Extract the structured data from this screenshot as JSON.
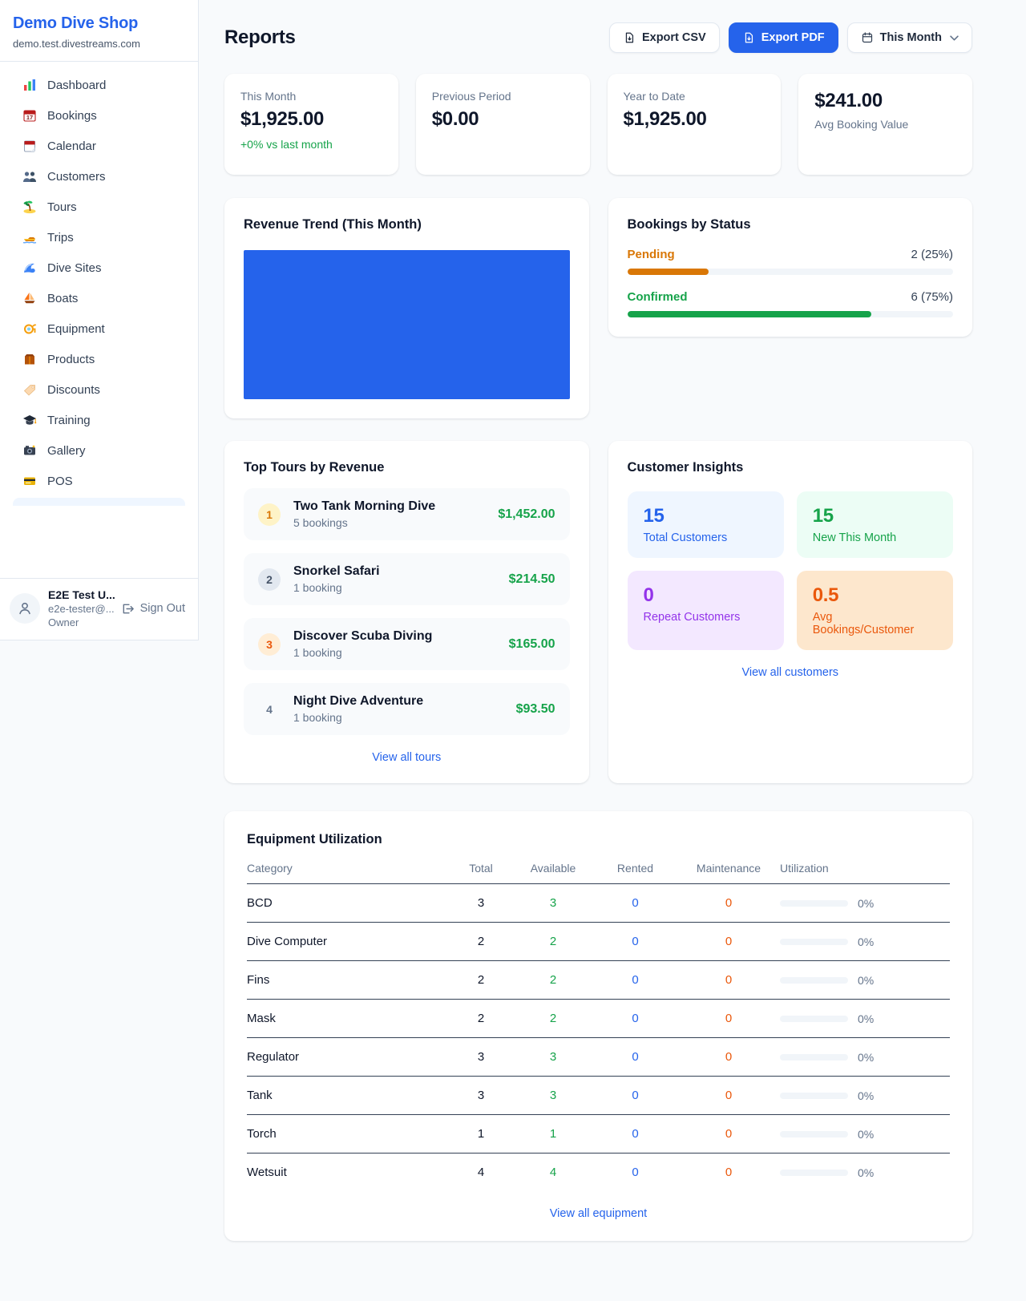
{
  "colors": {
    "accent": "#2563eb",
    "success": "#16a34a",
    "pending": "#d97706",
    "maintenance": "#ea580c",
    "purple": "#9333ea",
    "chart_bar": "#2563eb"
  },
  "sidebar": {
    "brand": {
      "name": "Demo Dive Shop",
      "domain": "demo.test.divestreams.com"
    },
    "nav": [
      {
        "icon": "dashboard-icon",
        "label": "Dashboard"
      },
      {
        "icon": "bookings-calendar-icon",
        "label": "Bookings"
      },
      {
        "icon": "calendar-icon",
        "label": "Calendar"
      },
      {
        "icon": "customers-icon",
        "label": "Customers"
      },
      {
        "icon": "tours-island-icon",
        "label": "Tours"
      },
      {
        "icon": "trips-boat-icon",
        "label": "Trips"
      },
      {
        "icon": "dive-sites-wave-icon",
        "label": "Dive Sites"
      },
      {
        "icon": "boats-sailboat-icon",
        "label": "Boats"
      },
      {
        "icon": "equipment-mask-icon",
        "label": "Equipment"
      },
      {
        "icon": "products-box-icon",
        "label": "Products"
      },
      {
        "icon": "discounts-tag-icon",
        "label": "Discounts"
      },
      {
        "icon": "training-cap-icon",
        "label": "Training"
      },
      {
        "icon": "gallery-camera-icon",
        "label": "Gallery"
      },
      {
        "icon": "pos-card-icon",
        "label": "POS"
      }
    ],
    "user": {
      "name": "E2E Test U...",
      "email": "e2e-tester@...",
      "role": "Owner",
      "sign_out": "Sign Out"
    }
  },
  "header": {
    "title": "Reports",
    "export_csv": "Export CSV",
    "export_pdf": "Export PDF",
    "period": "This Month"
  },
  "stats": [
    {
      "label": "This Month",
      "value": "$1,925.00",
      "sub": "+0% vs last month"
    },
    {
      "label": "Previous Period",
      "value": "$0.00"
    },
    {
      "label": "Year to Date",
      "value": "$1,925.00"
    },
    {
      "label": "Avg Booking Value",
      "value": "$241.00"
    }
  ],
  "revenue_trend": {
    "title": "Revenue Trend (This Month)",
    "fill_pct": 100
  },
  "bookings_by_status": {
    "title": "Bookings by Status",
    "rows": [
      {
        "label": "Pending",
        "value": "2 (25%)",
        "count": 2,
        "pct": 25
      },
      {
        "label": "Confirmed",
        "value": "6 (75%)",
        "count": 6,
        "pct": 75
      }
    ]
  },
  "top_tours": {
    "title": "Top Tours by Revenue",
    "items": [
      {
        "rank": "1",
        "name": "Two Tank Morning Dive",
        "bookings": "5 bookings",
        "revenue": "$1,452.00"
      },
      {
        "rank": "2",
        "name": "Snorkel Safari",
        "bookings": "1 booking",
        "revenue": "$214.50"
      },
      {
        "rank": "3",
        "name": "Discover Scuba Diving",
        "bookings": "1 booking",
        "revenue": "$165.00"
      },
      {
        "rank": "4",
        "name": "Night Dive Adventure",
        "bookings": "1 booking",
        "revenue": "$93.50"
      }
    ],
    "view_all": "View all tours"
  },
  "customer_insights": {
    "title": "Customer Insights",
    "tiles": [
      {
        "value": "15",
        "label": "Total Customers"
      },
      {
        "value": "15",
        "label": "New This Month"
      },
      {
        "value": "0",
        "label": "Repeat Customers"
      },
      {
        "value": "0.5",
        "label": "Avg Bookings/Customer"
      }
    ],
    "view_all": "View all customers"
  },
  "equipment": {
    "title": "Equipment Utilization",
    "columns": [
      "Category",
      "Total",
      "Available",
      "Rented",
      "Maintenance",
      "Utilization"
    ],
    "rows": [
      {
        "category": "BCD",
        "total": "3",
        "available": "3",
        "rented": "0",
        "maintenance": "0",
        "utilization": "0%",
        "pct": 0
      },
      {
        "category": "Dive Computer",
        "total": "2",
        "available": "2",
        "rented": "0",
        "maintenance": "0",
        "utilization": "0%",
        "pct": 0
      },
      {
        "category": "Fins",
        "total": "2",
        "available": "2",
        "rented": "0",
        "maintenance": "0",
        "utilization": "0%",
        "pct": 0
      },
      {
        "category": "Mask",
        "total": "2",
        "available": "2",
        "rented": "0",
        "maintenance": "0",
        "utilization": "0%",
        "pct": 0
      },
      {
        "category": "Regulator",
        "total": "3",
        "available": "3",
        "rented": "0",
        "maintenance": "0",
        "utilization": "0%",
        "pct": 0
      },
      {
        "category": "Tank",
        "total": "3",
        "available": "3",
        "rented": "0",
        "maintenance": "0",
        "utilization": "0%",
        "pct": 0
      },
      {
        "category": "Torch",
        "total": "1",
        "available": "1",
        "rented": "0",
        "maintenance": "0",
        "utilization": "0%",
        "pct": 0
      },
      {
        "category": "Wetsuit",
        "total": "4",
        "available": "4",
        "rented": "0",
        "maintenance": "0",
        "utilization": "0%",
        "pct": 0
      }
    ],
    "view_all": "View all equipment"
  }
}
